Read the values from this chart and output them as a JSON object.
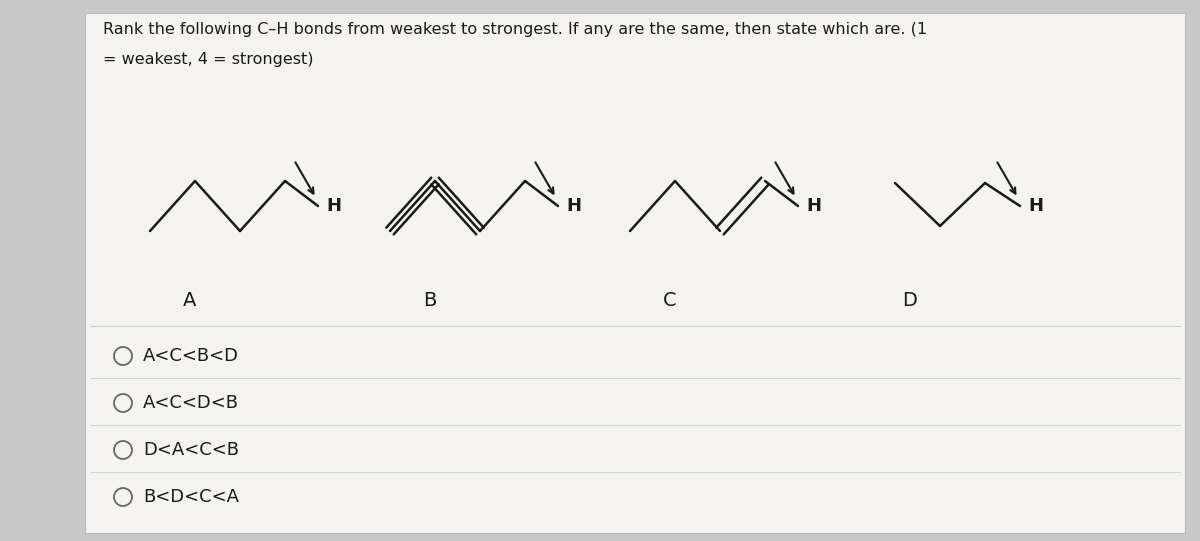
{
  "title_line1": "Rank the following C–H bonds from weakest to strongest. If any are the same, then state which are. (1",
  "title_line2": "= weakest, 4 = strongest)",
  "bg_color": "#c8c8c8",
  "panel_color": "#f5f3f0",
  "choices": [
    "A<C<B<D",
    "A<C<D<B",
    "D<A<C<B",
    "B<D<C<A"
  ],
  "molecule_labels": [
    "A",
    "B",
    "C",
    "D"
  ],
  "text_color": "#1a1a1a",
  "circle_color": "#666666",
  "line_color": "#1a1a1a",
  "separator_color": "#cccccc"
}
